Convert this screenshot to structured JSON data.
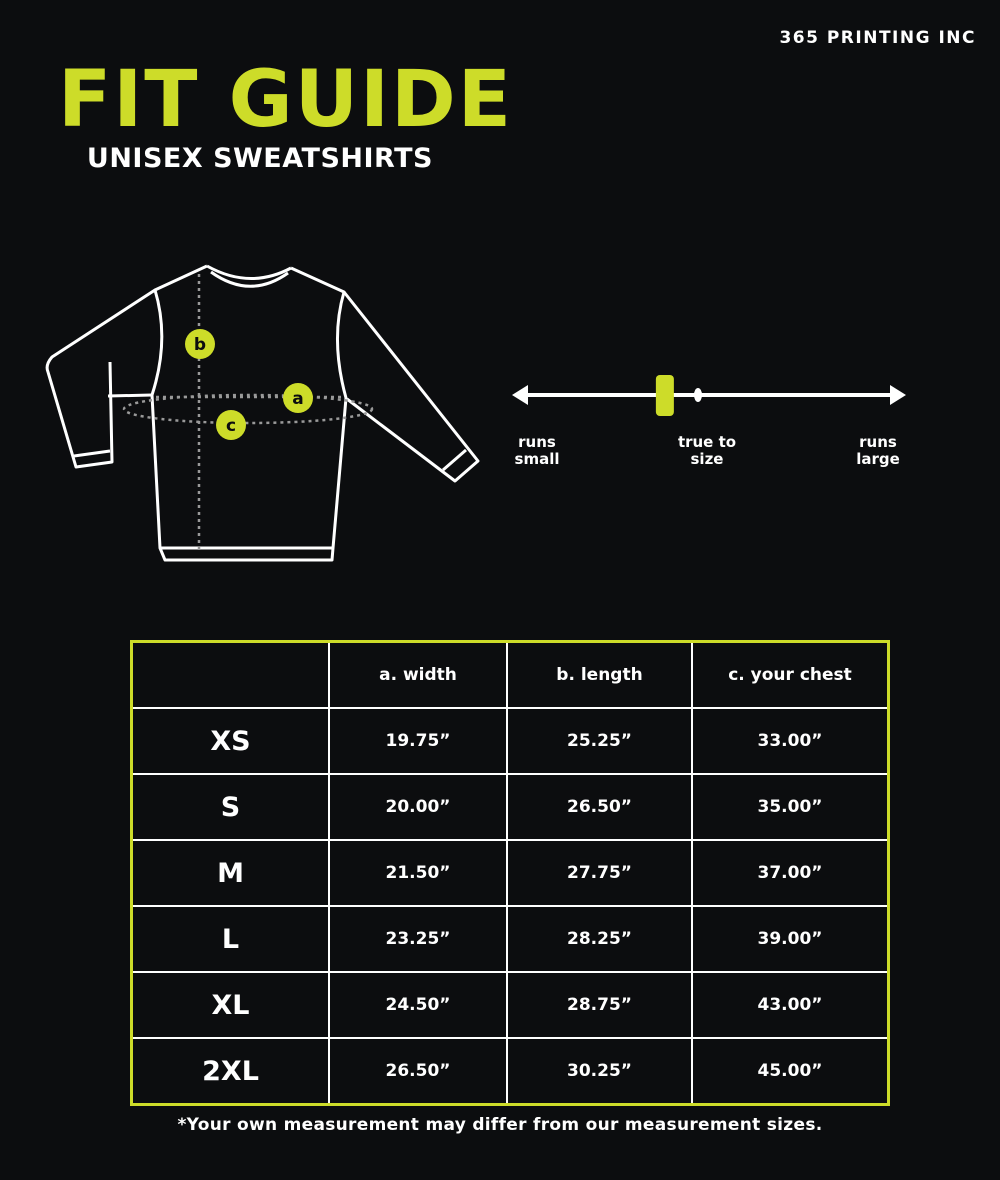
{
  "brand": "365 PRINTING INC",
  "title": "FIT GUIDE",
  "subtitle": "UNISEX SWEATSHIRTS",
  "accent_color": "#cddc29",
  "diagram": {
    "markers": [
      "b",
      "a",
      "c"
    ]
  },
  "fit_scale": {
    "labels": {
      "left": [
        "runs",
        "small"
      ],
      "center": [
        "true to",
        "size"
      ],
      "right": [
        "runs",
        "large"
      ]
    },
    "position_fraction": 0.38
  },
  "table": {
    "headers": [
      "",
      "a. width",
      "b. length",
      "c. your chest"
    ],
    "rows": [
      [
        "XS",
        "19.75”",
        "25.25”",
        "33.00”"
      ],
      [
        "S",
        "20.00”",
        "26.50”",
        "35.00”"
      ],
      [
        "M",
        "21.50”",
        "27.75”",
        "37.00”"
      ],
      [
        "L",
        "23.25”",
        "28.25”",
        "39.00”"
      ],
      [
        "XL",
        "24.50”",
        "28.75”",
        "43.00”"
      ],
      [
        "2XL",
        "26.50”",
        "30.25”",
        "45.00”"
      ]
    ]
  },
  "note": "*Your own measurement may differ from our measurement sizes."
}
